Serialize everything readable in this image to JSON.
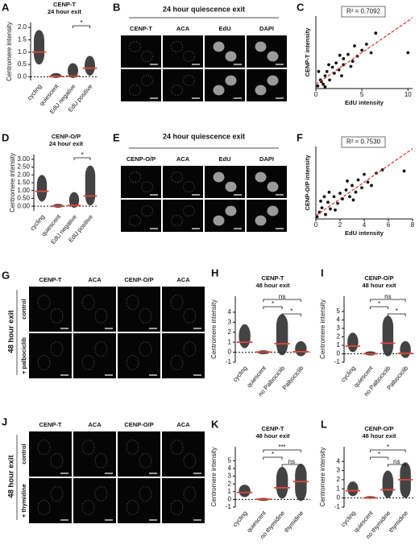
{
  "panel_letters": [
    "A",
    "B",
    "C",
    "D",
    "E",
    "F",
    "G",
    "H",
    "I",
    "J",
    "K",
    "L"
  ],
  "chart_data": [
    {
      "type": "strip",
      "title": "CENP-T",
      "subtitle": "24 hour exit",
      "y_label": "Centromere intensity",
      "categories": [
        "cycling",
        "quiescent",
        "EdU negative",
        "EdU positive"
      ],
      "values": [
        1.0,
        0.02,
        0.03,
        0.35
      ],
      "lows": [
        0.5,
        -0.05,
        -0.05,
        0.05
      ],
      "highs": [
        1.9,
        0.15,
        0.55,
        0.85
      ],
      "ylim": [
        -0.15,
        2.2
      ],
      "yticks": [
        {
          "value": 0,
          "label": "0.0"
        },
        {
          "value": 0.5,
          "label": "0.5"
        },
        {
          "value": 1,
          "label": "1.0"
        },
        {
          "value": 1.5,
          "label": "1.5"
        },
        {
          "value": 2,
          "label": "2.0"
        }
      ],
      "significance": [
        {
          "between": [
            "EdU negative",
            "EdU positive"
          ],
          "label": "*"
        }
      ]
    },
    {
      "type": "scatter",
      "x_label": "EdU intensity",
      "y_label": "CENP-T intensity",
      "annotation": "R² = 0.7092",
      "x": [
        0.2,
        0.5,
        0.8,
        1.0,
        1.2,
        1.5,
        1.8,
        2.0,
        2.2,
        2.5,
        3.0,
        3.0,
        3.5,
        4.0,
        4.2,
        4.5,
        5.0,
        5.5,
        6.0,
        6.5,
        10.0,
        0.3,
        1.0,
        2.8,
        0.6,
        1.4,
        2.6,
        3.8
      ],
      "y": [
        0.3,
        1.0,
        0.5,
        1.5,
        2.0,
        1.0,
        2.5,
        1.8,
        3.0,
        2.2,
        2.8,
        3.5,
        4.0,
        3.2,
        5.0,
        3.8,
        4.5,
        5.2,
        4.2,
        6.5,
        4.2,
        2.0,
        0.2,
        1.5,
        0.8,
        2.8,
        3.9,
        2.6
      ],
      "fit_line": {
        "x": [
          0,
          10.5
        ],
        "y": [
          0.5,
          8.3
        ]
      },
      "xlim": [
        0,
        10.5
      ],
      "xticks": [
        0,
        5,
        10
      ],
      "ylim": [
        0,
        8.5
      ]
    },
    {
      "type": "strip",
      "title": "CENP-O/P",
      "subtitle": "24 hour exit",
      "y_label": "Centromere intensity",
      "categories": [
        "cycling",
        "quiescent",
        "EdU negative",
        "EdU positive"
      ],
      "values": [
        0.95,
        0.0,
        0.05,
        0.65
      ],
      "lows": [
        0.3,
        -0.1,
        -0.1,
        0.05
      ],
      "highs": [
        2.0,
        0.15,
        0.9,
        2.6
      ],
      "ylim": [
        -0.3,
        3.3
      ],
      "yticks": [
        {
          "value": 0,
          "label": "0.00"
        },
        {
          "value": 0.5,
          "label": "0.50"
        },
        {
          "value": 1,
          "label": "1.00"
        },
        {
          "value": 1.5,
          "label": "1.50"
        },
        {
          "value": 2,
          "label": "2.00"
        },
        {
          "value": 2.5,
          "label": "2.50"
        },
        {
          "value": 3,
          "label": "3.00"
        }
      ],
      "significance": [
        {
          "between": [
            "EdU negative",
            "EdU positive"
          ],
          "label": "*"
        }
      ]
    },
    {
      "type": "scatter",
      "x_label": "EdU intensity",
      "y_label": "CENP-O/P intensity",
      "annotation": "R² = 0.7530",
      "x": [
        0.1,
        0.3,
        0.5,
        0.8,
        1.0,
        1.2,
        1.5,
        1.8,
        2.0,
        2.2,
        2.5,
        2.8,
        3.0,
        3.3,
        3.5,
        3.8,
        4.0,
        4.3,
        4.6,
        5.0,
        5.5,
        7.3,
        0.4,
        1.1,
        1.6,
        2.6,
        3.1,
        0.7
      ],
      "y": [
        0.2,
        0.6,
        1.0,
        0.4,
        1.5,
        0.9,
        2.0,
        1.4,
        2.3,
        1.8,
        2.6,
        2.0,
        3.0,
        2.4,
        3.5,
        2.8,
        4.0,
        3.3,
        3.0,
        4.1,
        4.4,
        4.3,
        1.6,
        2.4,
        0.8,
        3.4,
        1.7,
        2.0
      ],
      "fit_line": {
        "x": [
          0,
          8
        ],
        "y": [
          0.3,
          6.3
        ]
      },
      "xlim": [
        0,
        8
      ],
      "xticks": [
        0,
        2,
        4,
        6,
        8
      ],
      "ylim": [
        0,
        6.5
      ]
    },
    {
      "type": "strip",
      "title": "CENP-T",
      "subtitle": "48 hour exit",
      "y_label": "Centromere intensity",
      "categories": [
        "cycling",
        "quiescent",
        "no Palbociclib",
        "Palbociclib"
      ],
      "values": [
        1.0,
        0.02,
        0.85,
        0.05
      ],
      "lows": [
        0.4,
        -0.2,
        -0.3,
        -0.4
      ],
      "highs": [
        2.8,
        0.2,
        3.8,
        1.1
      ],
      "ylim": [
        -1,
        5.6
      ],
      "yticks": [
        -1,
        0,
        1,
        2,
        3,
        4
      ],
      "significance": [
        {
          "between": [
            "no Palbociclib",
            "Palbociclib"
          ],
          "label": "*"
        },
        {
          "between": [
            "quiescent",
            "no Palbociclib"
          ],
          "label": "*"
        },
        {
          "between": [
            "quiescent",
            "Palbociclib"
          ],
          "label": "ns"
        }
      ]
    },
    {
      "type": "strip",
      "title": "CENP-O/P",
      "subtitle": "48 hour exit",
      "y_label": "Centromere intensity",
      "categories": [
        "cycling",
        "quiescent",
        "no Palbociclib",
        "Palbociclib"
      ],
      "values": [
        0.9,
        0.0,
        1.25,
        0.05
      ],
      "lows": [
        0.2,
        -0.2,
        -0.3,
        -0.5
      ],
      "highs": [
        2.5,
        0.3,
        4.5,
        1.5
      ],
      "ylim": [
        -1,
        6.8
      ],
      "yticks": [
        -1,
        0,
        1,
        2,
        3,
        4,
        5
      ],
      "significance": [
        {
          "between": [
            "no Palbociclib",
            "Palbociclib"
          ],
          "label": "*"
        },
        {
          "between": [
            "quiescent",
            "no Palbociclib"
          ],
          "label": "*"
        },
        {
          "between": [
            "quiescent",
            "Palbociclib"
          ],
          "label": "ns"
        }
      ]
    },
    {
      "type": "strip",
      "title": "CENP-T",
      "subtitle": "48 hour exit",
      "y_label": "Centromere intensity",
      "categories": [
        "cycling",
        "quiescent",
        "no thymidine",
        "thymidine"
      ],
      "values": [
        0.9,
        0.02,
        1.5,
        2.3
      ],
      "lows": [
        0.3,
        -0.2,
        0.1,
        -0.2
      ],
      "highs": [
        1.9,
        0.2,
        4.2,
        4.6
      ],
      "ylim": [
        -1,
        6.8
      ],
      "yticks": [
        -1,
        0,
        1,
        2,
        3,
        4,
        5
      ],
      "significance": [
        {
          "between": [
            "no thymidine",
            "thymidine"
          ],
          "label": "ns"
        },
        {
          "between": [
            "quiescent",
            "no thymidine"
          ],
          "label": "*"
        },
        {
          "between": [
            "quiescent",
            "thymidine"
          ],
          "label": "***"
        }
      ]
    },
    {
      "type": "strip",
      "title": "CENP-O/P",
      "subtitle": "48 hour exit",
      "y_label": "Centromere intensity",
      "categories": [
        "cycling",
        "quiescent",
        "no thymidine",
        "thymidine"
      ],
      "values": [
        0.8,
        0.0,
        0.9,
        2.0
      ],
      "lows": [
        0.2,
        -0.1,
        0.0,
        0.0
      ],
      "highs": [
        1.8,
        0.2,
        3.0,
        3.9
      ],
      "ylim": [
        -1,
        5.6
      ],
      "yticks": [
        -1,
        0,
        1,
        2,
        3,
        4
      ],
      "significance": [
        {
          "between": [
            "no thymidine",
            "thymidine"
          ],
          "label": "ns"
        },
        {
          "between": [
            "quiescent",
            "no thymidine"
          ],
          "label": "*"
        },
        {
          "between": [
            "quiescent",
            "thymidine"
          ],
          "label": "*"
        }
      ]
    }
  ],
  "image_panels": [
    {
      "title": "24 hour quiescence exit",
      "columns": [
        "CENP-T",
        "ACA",
        "EdU",
        "DAPI"
      ]
    },
    {
      "title": "24 hour quiescence exit",
      "columns": [
        "CENP-O/P",
        "ACA",
        "EdU",
        "DAPI"
      ]
    },
    {
      "side_label": "48 hour exit",
      "rows": [
        "control",
        "+ palbociclib"
      ],
      "columns": [
        "CENP-T",
        "ACA",
        "CENP-O/P",
        "ACA"
      ]
    },
    {
      "side_label": "48 hour exit",
      "rows": [
        "control",
        "+ thymidine"
      ],
      "columns": [
        "CENP-T",
        "ACA",
        "CENP-O/P",
        "ACA"
      ]
    }
  ]
}
